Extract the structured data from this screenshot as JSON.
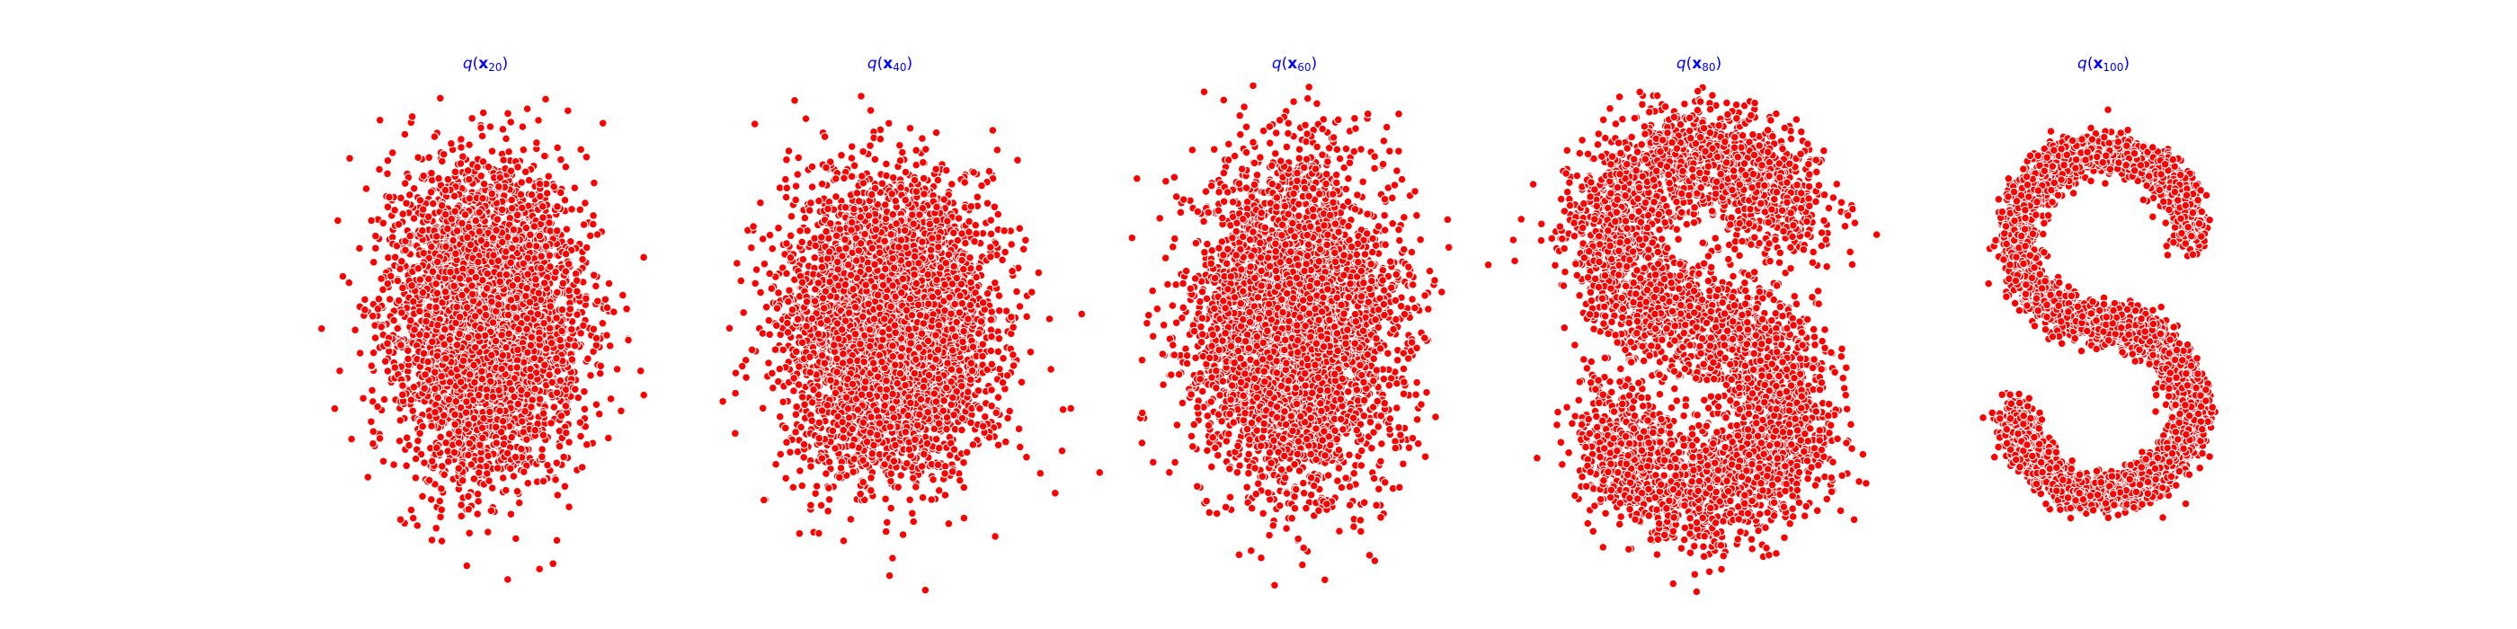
{
  "chart_data": [
    {
      "type": "scatter",
      "title": {
        "func": "q",
        "var": "x",
        "sub": "20"
      },
      "marker_color": "#ff0000",
      "marker_edge": "#ffffff",
      "axes_visible": false,
      "grid": false,
      "xlim": [
        -3.0,
        3.0
      ],
      "ylim": [
        -2.6,
        2.6
      ],
      "distribution": {
        "kind": "gaussian_blob",
        "n_points": 4200,
        "seed": 20,
        "center": [
          0.0,
          0.05
        ],
        "spread": [
          0.62,
          0.85
        ]
      }
    },
    {
      "type": "scatter",
      "title": {
        "func": "q",
        "var": "x",
        "sub": "40"
      },
      "marker_color": "#ff0000",
      "marker_edge": "#ffffff",
      "axes_visible": false,
      "grid": false,
      "xlim": [
        -3.0,
        3.0
      ],
      "ylim": [
        -2.6,
        2.6
      ],
      "distribution": {
        "kind": "gaussian_blob",
        "n_points": 4200,
        "seed": 40,
        "center": [
          0.0,
          0.0
        ],
        "spread": [
          0.68,
          0.82
        ]
      }
    },
    {
      "type": "scatter",
      "title": {
        "func": "q",
        "var": "x",
        "sub": "60"
      },
      "marker_color": "#ff0000",
      "marker_edge": "#ffffff",
      "axes_visible": false,
      "grid": false,
      "xlim": [
        -3.0,
        3.0
      ],
      "ylim": [
        -2.6,
        2.6
      ],
      "distribution": {
        "kind": "gaussian_blob",
        "n_points": 4200,
        "seed": 60,
        "center": [
          0.0,
          0.0
        ],
        "spread": [
          0.66,
          0.88
        ]
      }
    },
    {
      "type": "scatter",
      "title": {
        "func": "q",
        "var": "x",
        "sub": "80"
      },
      "marker_color": "#ff0000",
      "marker_edge": "#ffffff",
      "axes_visible": false,
      "grid": false,
      "xlim": [
        -3.0,
        3.0
      ],
      "ylim": [
        -2.6,
        2.6
      ],
      "distribution": {
        "kind": "s_curve",
        "n_points": 4200,
        "seed": 80,
        "noise": 0.34
      }
    },
    {
      "type": "scatter",
      "title": {
        "func": "q",
        "var": "x",
        "sub": "100"
      },
      "marker_color": "#ff0000",
      "marker_edge": "#ffffff",
      "axes_visible": false,
      "grid": false,
      "xlim": [
        -3.0,
        3.0
      ],
      "ylim": [
        -2.6,
        2.6
      ],
      "distribution": {
        "kind": "s_curve",
        "n_points": 4200,
        "seed": 100,
        "noise": 0.12
      }
    }
  ]
}
